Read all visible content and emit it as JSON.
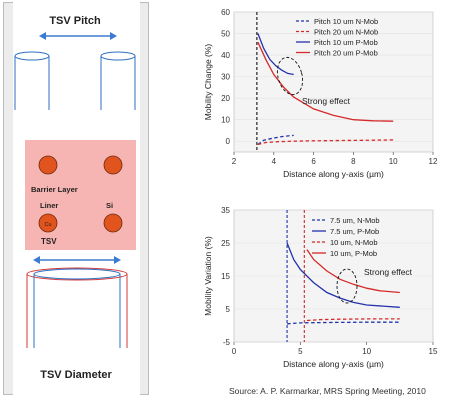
{
  "left_panel": {
    "pitch_label": "TSV Pitch",
    "barrier_label": "Barrier Layer",
    "liner_label": "Liner",
    "si_label": "Si",
    "cu_label": "Cu",
    "tsv_label": "TSV",
    "diameter_label": "TSV Diameter",
    "colors": {
      "frame_bg": "#ececec",
      "square": "#f6b4b2",
      "circle": "#e1541d",
      "cyl_blue": "#2f6fc0",
      "cyl_red": "#d63a3a",
      "arrow": "#3c7bd0"
    }
  },
  "source": "Source: A. P. Karmarkar, MRS Spring Meeting, 2010",
  "chart_data": [
    {
      "type": "line",
      "title": "",
      "xlabel": "Distance along y-axis (µm)",
      "ylabel": "Mobility Change (%)",
      "xlim": [
        2,
        12
      ],
      "ylim": [
        -5,
        60
      ],
      "xticks": [
        2,
        4,
        6,
        8,
        10,
        12
      ],
      "yticks": [
        0,
        10,
        20,
        30,
        40,
        50,
        60
      ],
      "legend_position": "top-right",
      "annotation": "Strong effect",
      "series": [
        {
          "name": "Pitch 10 um N-Mob",
          "color": "#2233aa",
          "style": "dashed",
          "x": [
            3.2,
            3.5,
            4.0,
            4.5,
            5.0
          ],
          "y": [
            -1.5,
            0.5,
            1.5,
            2.3,
            2.7
          ]
        },
        {
          "name": "Pitch 20 um N-Mob",
          "color": "#d62a2a",
          "style": "dashed",
          "x": [
            3.2,
            3.6,
            4.2,
            5.0,
            6.0,
            7.0,
            8.0,
            9.0,
            10.0
          ],
          "y": [
            -1.5,
            -0.6,
            -0.2,
            0.0,
            0.2,
            0.3,
            0.4,
            0.5,
            0.6
          ]
        },
        {
          "name": "Pitch 10 um P-Mob",
          "color": "#2233aa",
          "style": "solid",
          "x": [
            3.2,
            3.5,
            3.8,
            4.1,
            4.4,
            4.7,
            5.0
          ],
          "y": [
            50,
            43,
            38,
            35,
            33,
            31.5,
            31
          ]
        },
        {
          "name": "Pitch 20 um P-Mob",
          "color": "#d62a2a",
          "style": "solid",
          "x": [
            3.2,
            3.6,
            4.0,
            4.5,
            5.0,
            6.0,
            7.0,
            8.0,
            9.0,
            10.0
          ],
          "y": [
            46,
            38,
            31,
            25,
            20.5,
            15,
            12,
            10,
            9.5,
            9.3
          ]
        }
      ],
      "vline": {
        "x": 3.15,
        "style": "dashed",
        "color": "#111111"
      }
    },
    {
      "type": "line",
      "title": "",
      "xlabel": "Distance along y-axis (µm)",
      "ylabel": "Mobility Variation (%)",
      "xlim": [
        0,
        15
      ],
      "ylim": [
        -5,
        35
      ],
      "xticks": [
        0,
        5,
        10,
        15
      ],
      "yticks": [
        -5,
        5,
        15,
        25,
        35
      ],
      "legend_position": "top-right",
      "annotation": "Strong effect",
      "series": [
        {
          "name": "7.5 um, N-Mob",
          "color": "#2233aa",
          "style": "dashed",
          "x": [
            4.0,
            5.0,
            7.0,
            10.0,
            12.5
          ],
          "y": [
            0.5,
            0.8,
            0.9,
            1.0,
            1.0
          ]
        },
        {
          "name": "7.5 um, P-Mob",
          "color": "#2233aa",
          "style": "solid",
          "x": [
            4.0,
            4.5,
            5.0,
            6.0,
            7.0,
            8.0,
            9.0,
            10.0,
            12.5
          ],
          "y": [
            25,
            20,
            17,
            13,
            10,
            8.3,
            7.0,
            6.2,
            5.5
          ]
        },
        {
          "name": "10 um, N-Mob",
          "color": "#d62a2a",
          "style": "dashed",
          "x": [
            5.5,
            6.5,
            8.0,
            10.0,
            12.5
          ],
          "y": [
            1.5,
            1.8,
            1.9,
            2.0,
            2.0
          ]
        },
        {
          "name": "10 um, P-Mob",
          "color": "#d62a2a",
          "style": "solid",
          "x": [
            5.5,
            6.0,
            7.0,
            8.0,
            9.0,
            10.0,
            11.0,
            12.5
          ],
          "y": [
            23,
            20,
            16.5,
            14,
            12.5,
            11.3,
            10.5,
            10
          ]
        }
      ],
      "vlines": [
        {
          "x": 4.0,
          "style": "dashed",
          "color": "#2233aa"
        },
        {
          "x": 5.3,
          "style": "dashed",
          "color": "#d62a2a"
        }
      ]
    }
  ]
}
